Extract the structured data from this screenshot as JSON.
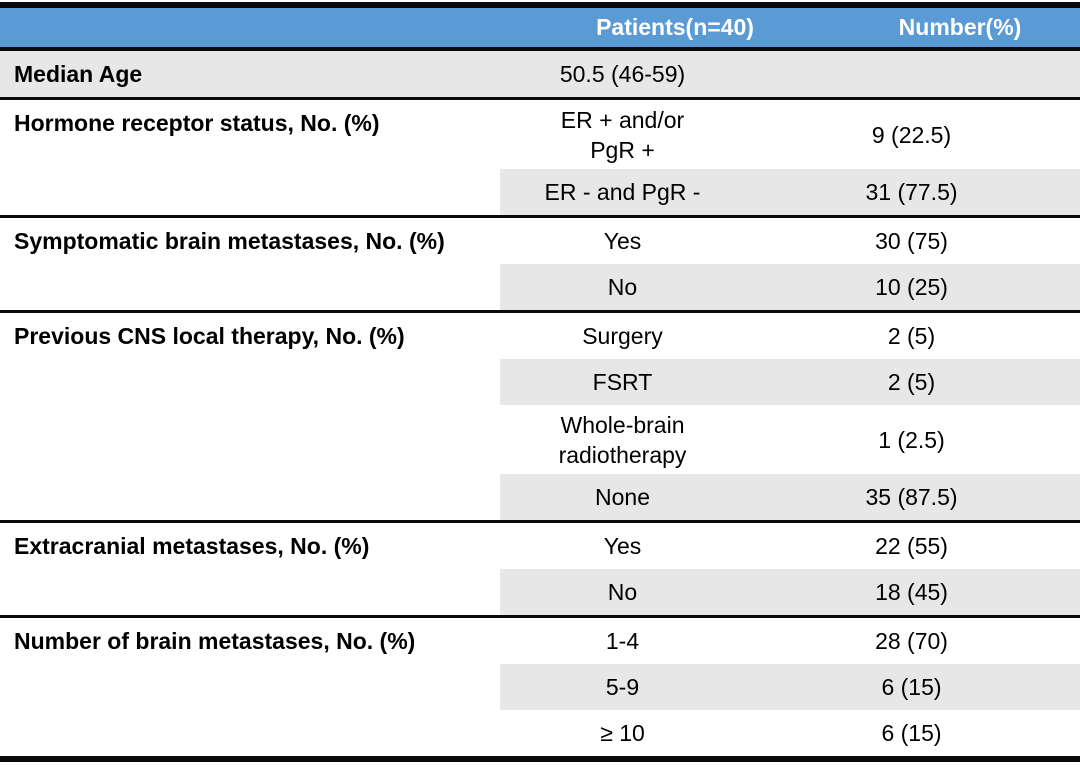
{
  "colors": {
    "header_bg": "#5b9bd5",
    "header_text": "#ffffff",
    "shade": "#e8e7e7",
    "rule": "#0a0a0a",
    "text": "#000000"
  },
  "header": {
    "patients": "Patients(n=40)",
    "number": "Number(%)"
  },
  "sections": [
    {
      "label": "Median Age",
      "rows": [
        {
          "category": "50.5 (46-59)",
          "value": ""
        }
      ]
    },
    {
      "label": "Hormone receptor status, No. (%)",
      "rows": [
        {
          "category": "ER + and/or\nPgR +",
          "value": "9 (22.5)"
        },
        {
          "category": "ER - and PgR -",
          "value": "31 (77.5)"
        }
      ]
    },
    {
      "label": "Symptomatic brain metastases, No. (%)",
      "rows": [
        {
          "category": "Yes",
          "value": "30 (75)"
        },
        {
          "category": "No",
          "value": "10 (25)"
        }
      ]
    },
    {
      "label": "Previous CNS local therapy, No. (%)",
      "rows": [
        {
          "category": "Surgery",
          "value": "2 (5)"
        },
        {
          "category": "FSRT",
          "value": "2 (5)"
        },
        {
          "category": "Whole-brain\nradiotherapy",
          "value": "1 (2.5)"
        },
        {
          "category": "None",
          "value": "35 (87.5)"
        }
      ]
    },
    {
      "label": "Extracranial metastases, No. (%)",
      "rows": [
        {
          "category": "Yes",
          "value": "22 (55)"
        },
        {
          "category": "No",
          "value": "18 (45)"
        }
      ]
    },
    {
      "label": "Number of brain metastases, No. (%)",
      "rows": [
        {
          "category": "1-4",
          "value": "28 (70)"
        },
        {
          "category": "5-9",
          "value": "6 (15)"
        },
        {
          "category": "≥ 10",
          "value": "6 (15)"
        }
      ]
    }
  ]
}
